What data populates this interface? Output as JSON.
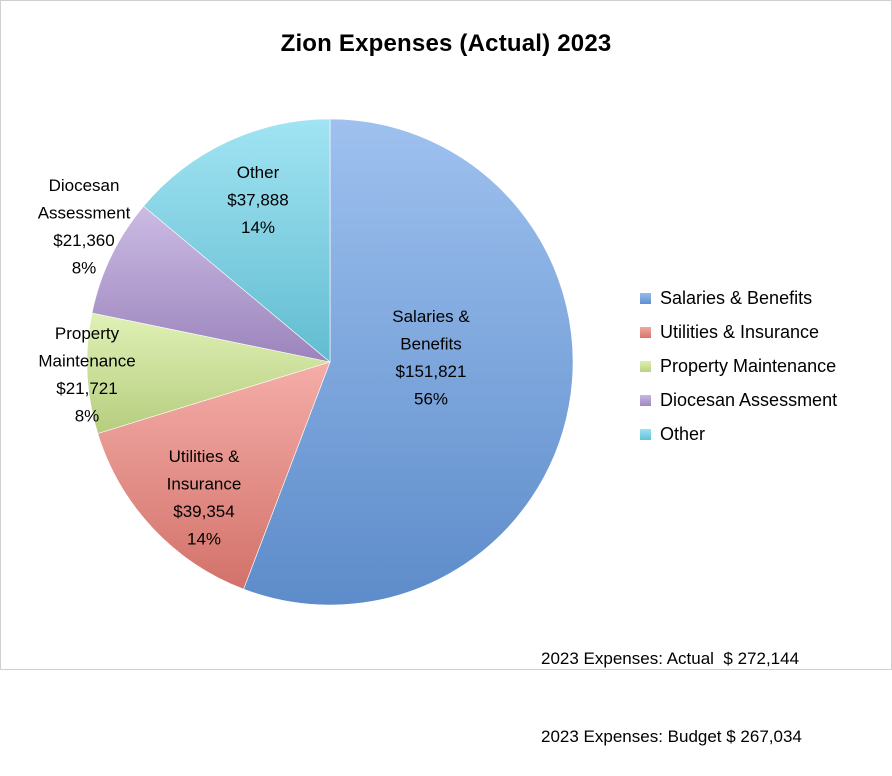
{
  "chart_data": {
    "type": "pie",
    "title": "Zion Expenses (Actual) 2023",
    "slices": [
      {
        "name": "Salaries & Benefits",
        "label_lines": [
          "Salaries &",
          "Benefits",
          "$151,821",
          "56%"
        ],
        "value": 151821,
        "percent": 56,
        "color": "#6a9fe6"
      },
      {
        "name": "Utilities & Insurance",
        "label_lines": [
          "Utilities &",
          "Insurance",
          "$39,354",
          "14%"
        ],
        "value": 39354,
        "percent": 14,
        "color": "#ef8179"
      },
      {
        "name": "Property Maintenance",
        "label_lines": [
          "Property",
          "Maintenance",
          "$21,721",
          "8%"
        ],
        "value": 21721,
        "percent": 8,
        "color": "#cfe98f"
      },
      {
        "name": "Diocesan Assessment",
        "label_lines": [
          "Diocesan",
          "Assessment",
          "$21,360",
          "8%"
        ],
        "value": 21360,
        "percent": 8,
        "color": "#b096d6"
      },
      {
        "name": "Other",
        "label_lines": [
          "Other",
          "$37,888",
          "14%"
        ],
        "value": 37888,
        "percent": 14,
        "color": "#6fd6ec"
      }
    ],
    "legend_position": "right",
    "start_angle": "12 o'clock, clockwise"
  },
  "totals": {
    "actual": "2023 Expenses: Actual  $ 272,144",
    "budget": "2023 Expenses: Budget $ 267,034"
  }
}
